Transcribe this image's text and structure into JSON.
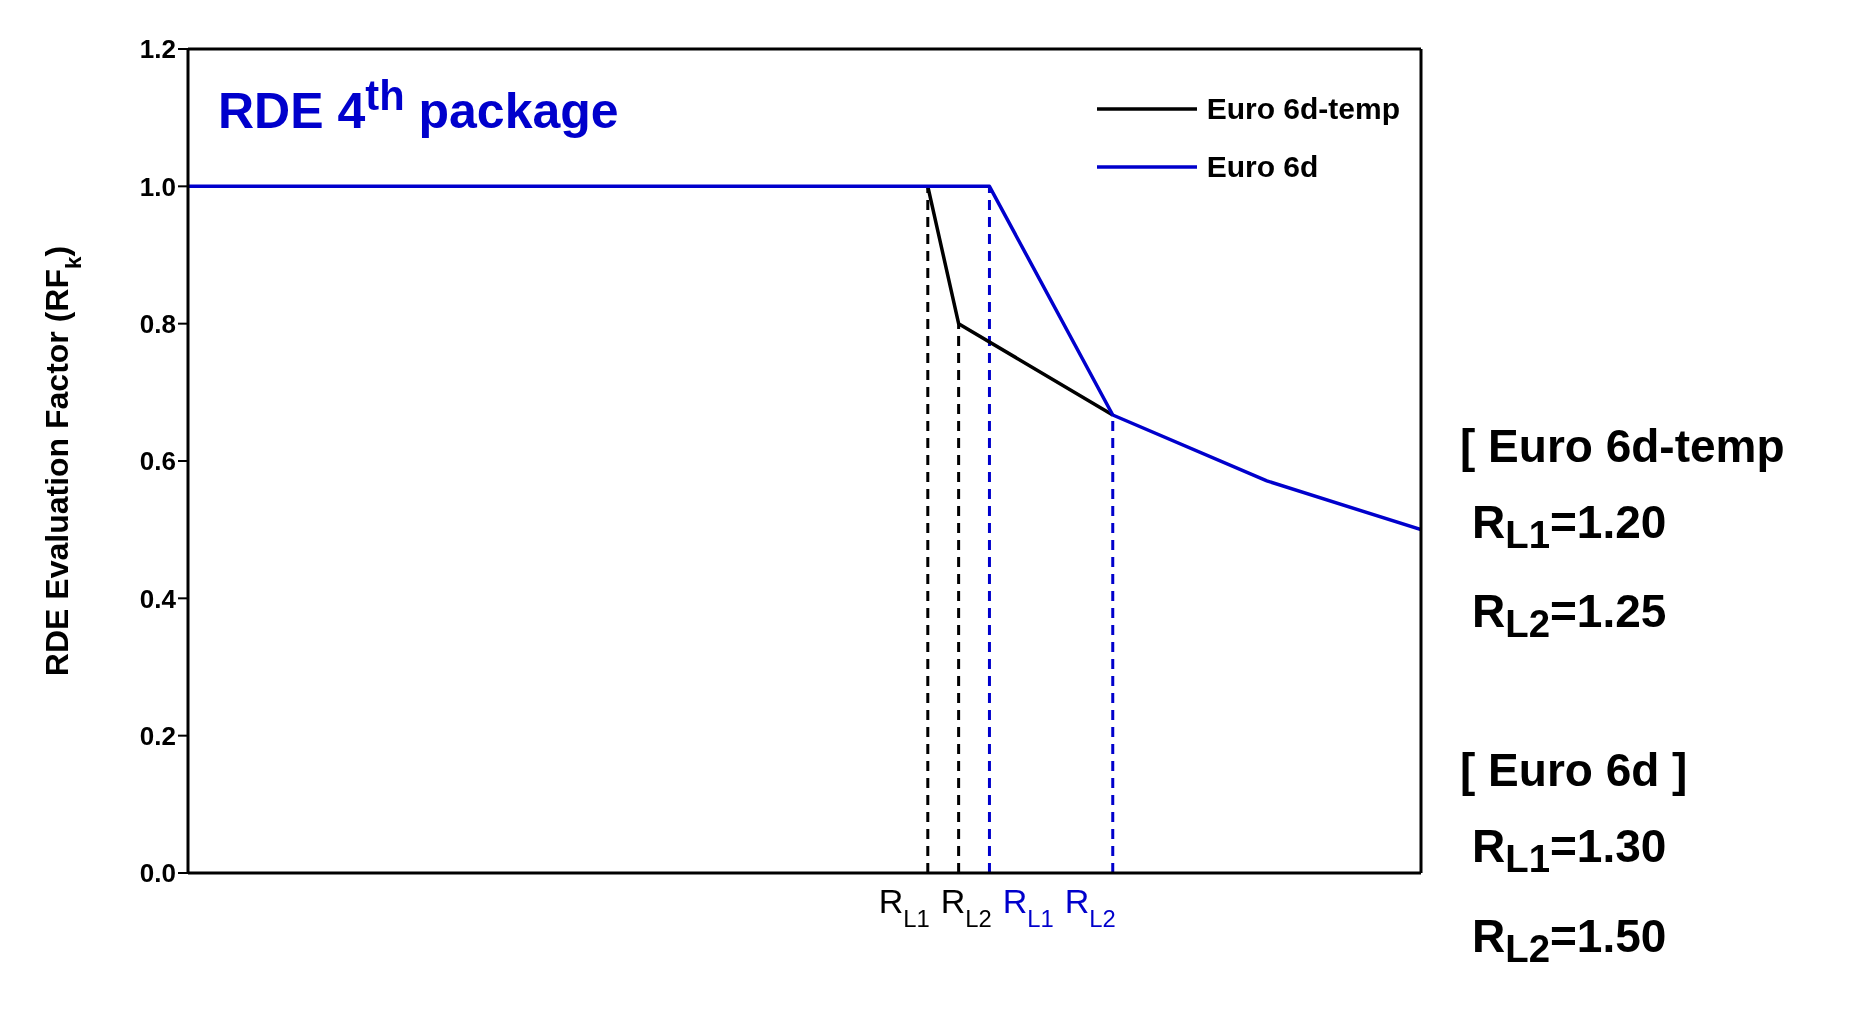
{
  "chart_data": {
    "type": "line",
    "title": "RDE 4$^{th}$ package",
    "ylabel": "RDE Evaluation Factor (RF$_{k}$)",
    "xlim": [
      0,
      2
    ],
    "ylim": [
      0,
      1.2
    ],
    "tick_labels": "y",
    "yticks": [
      {
        "value": 0,
        "label": "0.0"
      },
      {
        "value": 0.2,
        "label": "0.2"
      },
      {
        "value": 0.4,
        "label": "0.4"
      },
      {
        "value": 0.6,
        "label": "0.6"
      },
      {
        "value": 0.8,
        "label": "0.8"
      },
      {
        "value": 1,
        "label": "1.0"
      },
      {
        "value": 1.2,
        "label": "1.2"
      }
    ],
    "grid": false,
    "legend": "top right",
    "marker": "none",
    "line_style": "solid",
    "series": [
      {
        "name": "Euro 6d-temp",
        "color": "#000000",
        "x": [
          1.2,
          1.25,
          1.5
        ],
        "values": [
          1,
          0.8,
          0.667
        ]
      },
      {
        "name": "Euro 6d",
        "color": "#0000cc",
        "x": [
          0,
          1.3,
          1.5,
          1.75,
          2
        ],
        "values": [
          1,
          1,
          0.667,
          0.571,
          0.5
        ]
      }
    ],
    "ref_lines": [
      {
        "axis": "x",
        "value": 1.2,
        "label": "R$_{L1}$",
        "color": "#000000",
        "line_style": "dashed"
      },
      {
        "axis": "x",
        "value": 1.25,
        "label": "R$_{L2}$",
        "color": "#000000",
        "line_style": "dashed"
      },
      {
        "axis": "x",
        "value": 1.3,
        "label": "R$_{L1}$",
        "color": "#0000cc",
        "line_style": "dashed"
      },
      {
        "axis": "x",
        "value": 1.5,
        "label": "R$_{L2}$",
        "color": "#0000cc",
        "line_style": "dashed"
      }
    ],
    "annotations": [
      "[ Euro 6d-temp",
      "R$_{L1}$=1.20",
      "R$_{L2}$=1.25",
      "[ Euro 6d ]",
      "R$_{L1}$=1.30",
      "R$_{L2}$=1.50"
    ]
  }
}
